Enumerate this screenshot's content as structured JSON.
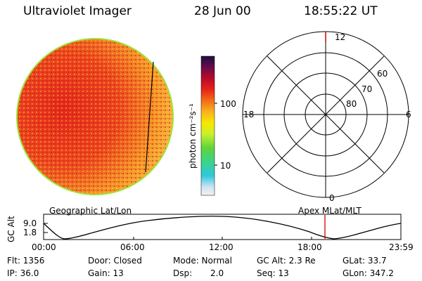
{
  "header": {
    "instrument": "Ultraviolet Imager",
    "date": "28 Jun 00",
    "time": "18:55:22 UT"
  },
  "colorbar": {
    "unit_label": "photon cm⁻²s⁻¹",
    "ticks": [
      "100",
      "10"
    ]
  },
  "polar_plot": {
    "mlt_labels": [
      "12",
      "18",
      "6",
      "0"
    ],
    "lat_labels": [
      "60",
      "70",
      "80"
    ]
  },
  "orbit_panel": {
    "y_axis_label": "GC Alt",
    "y_ticks": [
      "9.0",
      "1.8"
    ],
    "left_caption": "Geographic Lat/Lon",
    "right_caption": "Apex MLat/MLT",
    "x_ticks": [
      "00:00",
      "06:00",
      "12:00",
      "18:00",
      "23:59"
    ],
    "current_time_color": "#cc0000"
  },
  "info": {
    "flt": "Flt: 1356",
    "ip": "IP: 36.0",
    "door": "Door: Closed",
    "gain": "Gain: 13",
    "mode": "Mode: Normal",
    "dsp_label": "Dsp:",
    "dsp_value": "2.0",
    "gc_alt": "GC Alt: 2.3 Re",
    "seq": "Seq: 13",
    "glat": "GLat:  33.7",
    "glon": "GLon: 347.2"
  }
}
